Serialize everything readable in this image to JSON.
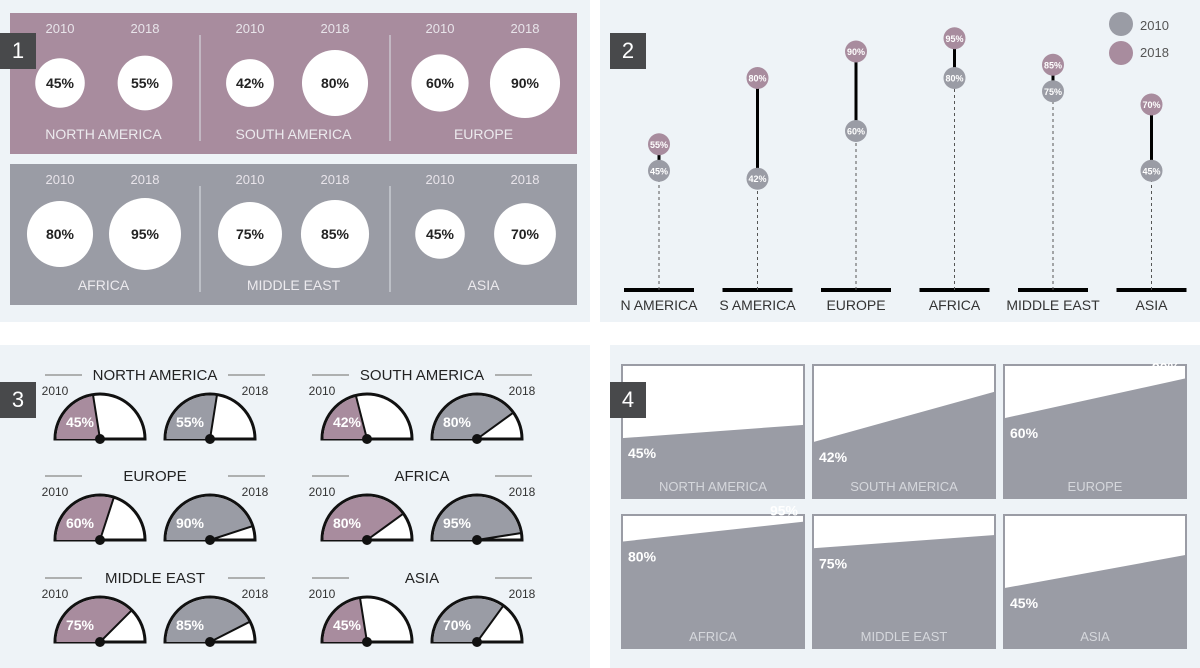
{
  "panels": [
    "1",
    "2",
    "3",
    "4"
  ],
  "colors": {
    "y2010": "#9a9ca5",
    "y2018": "#a88c9e",
    "dark": "#48494b",
    "panel_bg": "#eef3f7"
  },
  "chart_data": [
    {
      "panel": "1",
      "type": "bubble",
      "series": [
        {
          "name": "2010",
          "values": [
            45,
            42,
            60,
            80,
            75,
            45
          ]
        },
        {
          "name": "2018",
          "values": [
            55,
            80,
            90,
            95,
            85,
            70
          ]
        }
      ],
      "categories": [
        "NORTH AMERICA",
        "SOUTH AMERICA",
        "EUROPE",
        "AFRICA",
        "MIDDLE EAST",
        "ASIA"
      ]
    },
    {
      "panel": "2",
      "type": "dumbbell",
      "categories": [
        "N AMERICA",
        "S AMERICA",
        "EUROPE",
        "AFRICA",
        "MIDDLE EAST",
        "ASIA"
      ],
      "series": [
        {
          "name": "2010",
          "values": [
            45,
            42,
            60,
            80,
            75,
            45
          ]
        },
        {
          "name": "2018",
          "values": [
            55,
            80,
            90,
            95,
            85,
            70
          ]
        }
      ],
      "legend": "top-right"
    },
    {
      "panel": "3",
      "type": "gauge",
      "categories": [
        "NORTH AMERICA",
        "SOUTH AMERICA",
        "EUROPE",
        "AFRICA",
        "MIDDLE EAST",
        "ASIA"
      ],
      "series": [
        {
          "name": "2010",
          "values": [
            45,
            42,
            60,
            80,
            75,
            45
          ]
        },
        {
          "name": "2018",
          "values": [
            55,
            80,
            90,
            95,
            85,
            70
          ]
        }
      ]
    },
    {
      "panel": "4",
      "type": "area",
      "categories": [
        "NORTH AMERICA",
        "SOUTH AMERICA",
        "EUROPE",
        "AFRICA",
        "MIDDLE EAST",
        "ASIA"
      ],
      "series": [
        {
          "name": "2010",
          "values": [
            45,
            42,
            60,
            80,
            75,
            45
          ]
        },
        {
          "name": "2018",
          "values": [
            55,
            80,
            90,
            95,
            85,
            70
          ]
        }
      ]
    }
  ]
}
